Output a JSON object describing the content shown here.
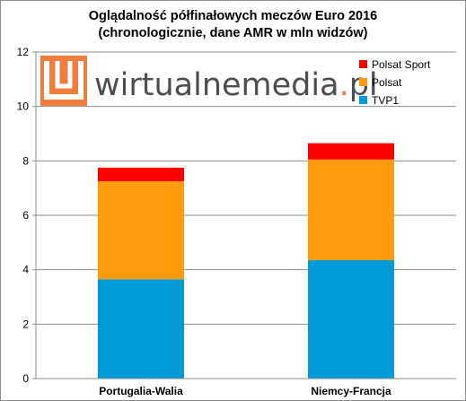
{
  "chart_data": {
    "type": "bar",
    "stacked": true,
    "title": "Oglądalność półfinałowych meczów Euro 2016",
    "subtitle": "(chronologicznie, dane AMR w mln widzów)",
    "categories": [
      "Portugalia-Walia",
      "Niemcy-Francja"
    ],
    "series": [
      {
        "name": "TVP1",
        "values": [
          3.65,
          4.35
        ],
        "color": "#009ad6"
      },
      {
        "name": "Polsat",
        "values": [
          3.6,
          3.7
        ],
        "color": "#ff9b0d"
      },
      {
        "name": "Polsat Sport",
        "values": [
          0.5,
          0.6
        ],
        "color": "#ff0000"
      }
    ],
    "legend_order": [
      "Polsat Sport",
      "Polsat",
      "TVP1"
    ],
    "legend_position": "top-right",
    "ylim": [
      0,
      12
    ],
    "yticks": [
      "0",
      "2",
      "4",
      "6",
      "8",
      "10",
      "12"
    ],
    "grid": true
  },
  "logo": {
    "text": "wirtualnemedia",
    "suffix": ".pl",
    "accent_color": "#f07d3c",
    "text_color": "#4d4d4d"
  }
}
